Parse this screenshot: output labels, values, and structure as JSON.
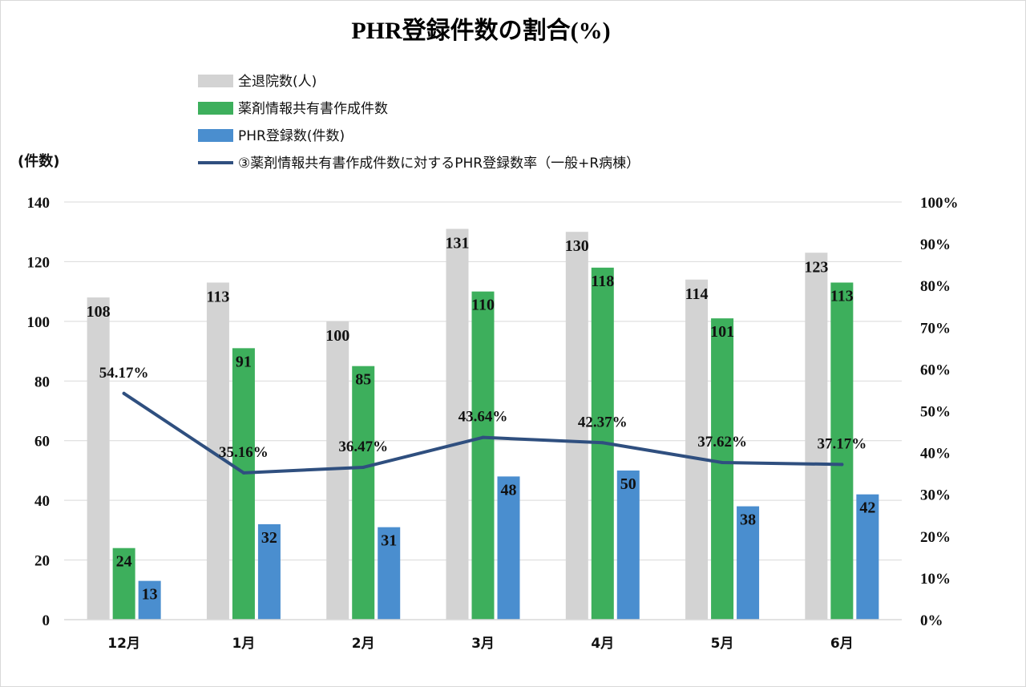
{
  "chart_data": {
    "type": "bar",
    "title": "PHR登録件数の割合(%)",
    "ylabel": "(件数)",
    "ylim": [
      0,
      140
    ],
    "y_ticks": [
      "0",
      "20",
      "40",
      "60",
      "80",
      "100",
      "120",
      "140"
    ],
    "y2lim": [
      0,
      1
    ],
    "y2_ticks": [
      "0%",
      "10%",
      "20%",
      "30%",
      "40%",
      "50%",
      "60%",
      "70%",
      "80%",
      "90%",
      "100%"
    ],
    "grid": true,
    "legend_position": "top",
    "categories": [
      "12月",
      "1月",
      "2月",
      "3月",
      "4月",
      "5月",
      "6月"
    ],
    "series": [
      {
        "name": "全退院数(人)",
        "type": "bar",
        "color": "#d3d3d3",
        "values": [
          108,
          113,
          100,
          131,
          130,
          114,
          123
        ],
        "labels": [
          "108",
          "113",
          "100",
          "131",
          "130",
          "114",
          "123"
        ]
      },
      {
        "name": "薬剤情報共有書作成件数",
        "type": "bar",
        "color": "#3daf5c",
        "values": [
          24,
          91,
          85,
          110,
          118,
          101,
          113
        ],
        "labels": [
          "24",
          "91",
          "85",
          "110",
          "118",
          "101",
          "113"
        ]
      },
      {
        "name": "PHR登録数(件数)",
        "type": "bar",
        "color": "#4a8ecf",
        "values": [
          13,
          32,
          31,
          48,
          50,
          38,
          42
        ],
        "labels": [
          "13",
          "32",
          "31",
          "48",
          "50",
          "38",
          "42"
        ]
      },
      {
        "name": "③薬剤情報共有書作成件数に対するPHR登録数率（一般+R病棟）",
        "type": "line",
        "axis": "secondary",
        "color": "#2f4f7f",
        "values": [
          0.5417,
          0.3516,
          0.3647,
          0.4364,
          0.4237,
          0.3762,
          0.3717
        ],
        "labels": [
          "54.17%",
          "35.16%",
          "36.47%",
          "43.64%",
          "42.37%",
          "37.62%",
          "37.17%"
        ]
      }
    ]
  }
}
